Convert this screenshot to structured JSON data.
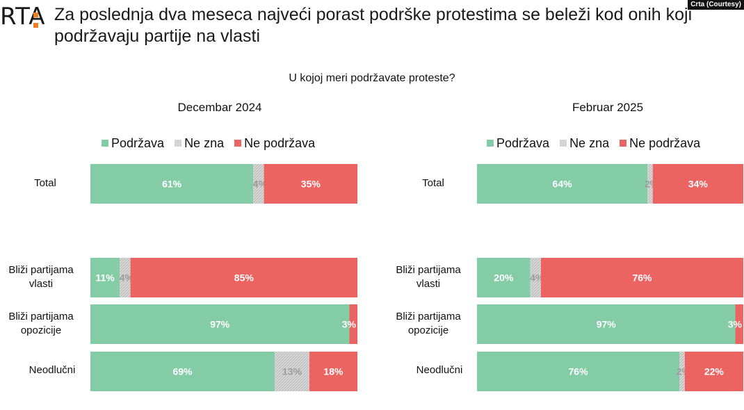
{
  "logo": {
    "text": "RTA"
  },
  "headline": "Za poslednja dva meseca najveći porast podrške protestima se beleži kod onih koji podržavaju partije na vlasti",
  "credit": "Crta (Courtesy)",
  "question": "U kojoj meri podržavate proteste?",
  "colors": {
    "support": "#84cca6",
    "dontknow": "#d4d4d4",
    "oppose": "#ec6461"
  },
  "chart_data": [
    {
      "type": "bar",
      "orientation": "horizontal-stacked-100",
      "title": "Decembar 2024",
      "legend": [
        "Podržava",
        "Ne zna",
        "Ne podržava"
      ],
      "categories": [
        "Total",
        "Bliži partijama vlasti",
        "Bliži partijama opozicije",
        "Neodlučni"
      ],
      "series": [
        {
          "name": "Podržava",
          "values": [
            61,
            11,
            97,
            69
          ],
          "labels": [
            "61%",
            "11%",
            "97%",
            "69%"
          ]
        },
        {
          "name": "Ne zna",
          "values": [
            4,
            4,
            0,
            13
          ],
          "labels": [
            "4%",
            "4%",
            "",
            "13%"
          ]
        },
        {
          "name": "Ne podržava",
          "values": [
            35,
            85,
            3,
            18
          ],
          "labels": [
            "35%",
            "85%",
            "3%",
            "18%"
          ]
        }
      ]
    },
    {
      "type": "bar",
      "orientation": "horizontal-stacked-100",
      "title": "Februar 2025",
      "legend": [
        "Podržava",
        "Ne zna",
        "Ne podržava"
      ],
      "categories": [
        "Total",
        "Bliži partijama vlasti",
        "Bliži partijama opozicije",
        "Neodlučni"
      ],
      "series": [
        {
          "name": "Podržava",
          "values": [
            64,
            20,
            97,
            76
          ],
          "labels": [
            "64%",
            "20%",
            "97%",
            "76%"
          ]
        },
        {
          "name": "Ne zna",
          "values": [
            2,
            4,
            0,
            2
          ],
          "labels": [
            "2%",
            "4%",
            "",
            "2%"
          ]
        },
        {
          "name": "Ne podržava",
          "values": [
            34,
            76,
            3,
            22
          ],
          "labels": [
            "34%",
            "76%",
            "3%",
            "22%"
          ]
        }
      ]
    }
  ],
  "row_label_lines": [
    [
      "Total"
    ],
    [
      "Bliži partijama",
      "vlasti"
    ],
    [
      "Bliži partijama",
      "opozicije"
    ],
    [
      "Neodlučni"
    ]
  ]
}
